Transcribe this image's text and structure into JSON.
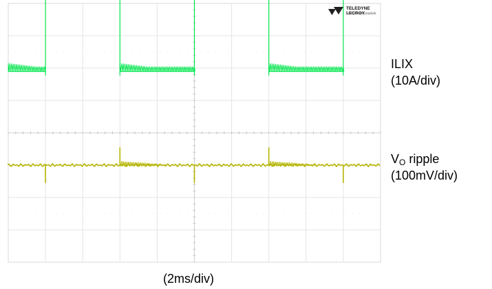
{
  "brand": {
    "name": "TELEDYNE LECROY",
    "tagline": "Everywhereyoulook"
  },
  "traces": {
    "current": {
      "label": "ILIX",
      "scale": "(10A/div)",
      "color": "#00e64d"
    },
    "ripple": {
      "label_main": "V",
      "label_sub": "O",
      "label_rest": " ripple",
      "scale": "(100mV/div)",
      "color": "#b4b400"
    }
  },
  "time_scale": "(2ms/div)",
  "chart_data": {
    "type": "line",
    "grid": {
      "x_divisions": 10,
      "y_divisions": 8,
      "grid": true
    },
    "time_per_div_ms": 2,
    "series": [
      {
        "name": "ILIX",
        "units_per_div": "10A/div",
        "segments": [
          {
            "t_div": [
              0,
              1.0
            ],
            "level_div": 1.9,
            "ripple_div": 0.15,
            "mode": "pulsed-low"
          },
          {
            "t_div": [
              1.0,
              3.0
            ],
            "level_div": 4.3,
            "ripple_div": 0.3,
            "mode": "high"
          },
          {
            "t_div": [
              3.0,
              5.0
            ],
            "level_div": 1.9,
            "ripple_div": 0.15,
            "mode": "pulsed-low"
          },
          {
            "t_div": [
              5.0,
              7.0
            ],
            "level_div": 4.3,
            "ripple_div": 0.3,
            "mode": "high"
          },
          {
            "t_div": [
              7.0,
              9.0
            ],
            "level_div": 1.9,
            "ripple_div": 0.15,
            "mode": "pulsed-low"
          },
          {
            "t_div": [
              9.0,
              10.0
            ],
            "level_div": 4.3,
            "ripple_div": 0.3,
            "mode": "high"
          }
        ]
      },
      {
        "name": "VO ripple",
        "units_per_div": "100mV/div",
        "baseline_div": -1.0,
        "transients": [
          {
            "t_div": 1.0,
            "direction": "down",
            "amplitude_div": 0.55
          },
          {
            "t_div": 3.0,
            "direction": "up",
            "amplitude_div": 0.55
          },
          {
            "t_div": 5.0,
            "direction": "down",
            "amplitude_div": 0.55
          },
          {
            "t_div": 7.0,
            "direction": "up",
            "amplitude_div": 0.55
          },
          {
            "t_div": 9.0,
            "direction": "down",
            "amplitude_div": 0.55
          }
        ]
      }
    ]
  }
}
